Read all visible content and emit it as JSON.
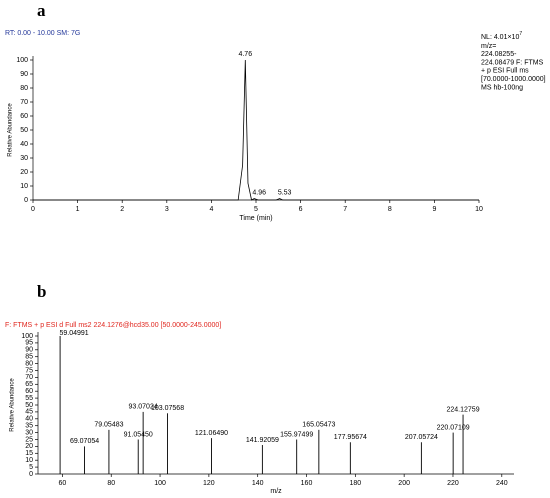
{
  "chart_data": [
    {
      "type": "line",
      "panel_label": "a",
      "header": "RT: 0.00 - 10.00   SM: 7G",
      "side_text": [
        "m/z=",
        "224.08255-",
        "224.08479 F: FTMS",
        "+ p ESI Full ms",
        "[70.0000-1000.0000]",
        "MS hb-100ng"
      ],
      "nl": "NL: 4.01×10",
      "nl_exponent": "7",
      "x_label": "Time (min)",
      "y_label": "Relative Abundance",
      "x": [
        0,
        4.6,
        4.7,
        4.76,
        4.82,
        4.9,
        4.96,
        5.05,
        5.45,
        5.53,
        5.6,
        10
      ],
      "series": [
        {
          "color": "#000000",
          "values": [
            0,
            0,
            25,
            100,
            12,
            0,
            1,
            0,
            0,
            1,
            0,
            0
          ]
        }
      ],
      "peaks": [
        {
          "x": 4.76,
          "y": 100
        },
        {
          "x": 4.96,
          "y": 1
        },
        {
          "x": 5.53,
          "y": 1
        }
      ],
      "xlim": [
        0,
        10
      ],
      "xticks": [
        0,
        1,
        2,
        3,
        4,
        5,
        6,
        7,
        8,
        9,
        10
      ],
      "ylim": [
        0,
        100
      ],
      "yticks": [
        0,
        10,
        20,
        30,
        40,
        50,
        60,
        70,
        80,
        90,
        100
      ]
    },
    {
      "type": "bar",
      "panel_label": "b",
      "header": "F: FTMS + p ESI d Full ms2 224.1276@hcd35.00 [50.0000-245.0000]",
      "x_label": "m/z",
      "y_label": "Relative Abundance",
      "x": [
        59.04991,
        69.07054,
        79.05483,
        {
          "value": 91.0545,
          "label": "91.05450"
        },
        93.07024,
        103.07568,
        {
          "value": 121.0649,
          "label": "121.06490"
        },
        141.92059,
        155.97499,
        165.05473,
        177.95674,
        207.05724,
        220.07109,
        224.12759
      ],
      "series": [
        {
          "color": "#000000",
          "values": [
            100,
            20,
            32,
            25,
            45,
            44,
            26,
            21,
            25,
            32,
            23,
            23,
            30,
            43
          ]
        }
      ],
      "xlim": [
        50,
        245
      ],
      "xticks": [
        60,
        80,
        100,
        120,
        140,
        160,
        180,
        200,
        220,
        240
      ],
      "ylim": [
        0,
        100
      ],
      "yticks": [
        0,
        5,
        10,
        15,
        20,
        25,
        30,
        35,
        40,
        45,
        50,
        55,
        60,
        65,
        70,
        75,
        80,
        85,
        90,
        95,
        100
      ]
    }
  ]
}
